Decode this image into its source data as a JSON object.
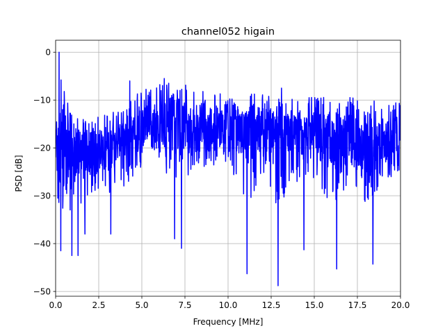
{
  "chart_data": {
    "type": "line",
    "title": "channel052 higain",
    "xlabel": "Frequency [MHz]",
    "ylabel": "PSD [dB]",
    "xlim": [
      0,
      20
    ],
    "ylim": [
      -51,
      2.5
    ],
    "xticks": [
      0,
      2.5,
      5,
      7.5,
      10,
      12.5,
      15,
      17.5,
      20
    ],
    "xtick_labels": [
      "0.0",
      "2.5",
      "5.0",
      "7.5",
      "10.0",
      "12.5",
      "15.0",
      "17.5",
      "20.0"
    ],
    "yticks": [
      0,
      -10,
      -20,
      -30,
      -40,
      -50
    ],
    "ytick_labels": [
      "0",
      "−10",
      "−20",
      "−30",
      "−40",
      "−50"
    ],
    "grid": true,
    "line_color": "#0000ff",
    "series": [
      {
        "x_start": 0,
        "x_end": 20,
        "envelope": [
          {
            "x": 0.0,
            "upper": -17,
            "lower": -35,
            "mid": -24
          },
          {
            "x": 0.2,
            "upper": 0,
            "lower": -42,
            "mid": -22
          },
          {
            "x": 1.0,
            "upper": -13,
            "lower": -42,
            "mid": -22
          },
          {
            "x": 2.0,
            "upper": -14,
            "lower": -40,
            "mid": -21
          },
          {
            "x": 3.0,
            "upper": -12,
            "lower": -38,
            "mid": -20
          },
          {
            "x": 4.0,
            "upper": -11,
            "lower": -36,
            "mid": -18
          },
          {
            "x": 5.0,
            "upper": -7,
            "lower": -33,
            "mid": -16
          },
          {
            "x": 6.0,
            "upper": -6,
            "lower": -31,
            "mid": -15
          },
          {
            "x": 7.0,
            "upper": -5,
            "lower": -39,
            "mid": -15
          },
          {
            "x": 8.0,
            "upper": -7,
            "lower": -33,
            "mid": -16
          },
          {
            "x": 9.0,
            "upper": -8,
            "lower": -30,
            "mid": -16
          },
          {
            "x": 10.0,
            "upper": -8,
            "lower": -30,
            "mid": -16
          },
          {
            "x": 11.0,
            "upper": -8,
            "lower": -46,
            "mid": -16
          },
          {
            "x": 12.0,
            "upper": -8,
            "lower": -35,
            "mid": -16
          },
          {
            "x": 13.0,
            "upper": -9,
            "lower": -48,
            "mid": -17
          },
          {
            "x": 14.0,
            "upper": -9,
            "lower": -36,
            "mid": -17
          },
          {
            "x": 15.0,
            "upper": -9,
            "lower": -34,
            "mid": -18
          },
          {
            "x": 16.0,
            "upper": -9,
            "lower": -45,
            "mid": -18
          },
          {
            "x": 17.0,
            "upper": -9,
            "lower": -34,
            "mid": -19
          },
          {
            "x": 18.0,
            "upper": -8,
            "lower": -44,
            "mid": -19
          },
          {
            "x": 19.0,
            "upper": -9,
            "lower": -33,
            "mid": -20
          },
          {
            "x": 20.0,
            "upper": -10,
            "lower": -30,
            "mid": -20
          }
        ],
        "peaks": [
          {
            "x": 0.2,
            "y": 0
          },
          {
            "x": 0.45,
            "y": -11
          },
          {
            "x": 4.3,
            "y": -6
          },
          {
            "x": 6.3,
            "y": -5.5
          },
          {
            "x": 6.9,
            "y": -4
          },
          {
            "x": 13.1,
            "y": -7.5
          },
          {
            "x": 18.4,
            "y": -8.5
          }
        ],
        "troughs": [
          {
            "x": 0.3,
            "y": -41.5
          },
          {
            "x": 0.95,
            "y": -42.5
          },
          {
            "x": 1.3,
            "y": -42.5
          },
          {
            "x": 1.7,
            "y": -38
          },
          {
            "x": 3.2,
            "y": -38
          },
          {
            "x": 6.9,
            "y": -39
          },
          {
            "x": 7.3,
            "y": -41
          },
          {
            "x": 11.1,
            "y": -46.3
          },
          {
            "x": 12.9,
            "y": -48.8
          },
          {
            "x": 14.4,
            "y": -41.3
          },
          {
            "x": 16.3,
            "y": -45.3
          },
          {
            "x": 18.4,
            "y": -44.3
          }
        ]
      }
    ]
  }
}
